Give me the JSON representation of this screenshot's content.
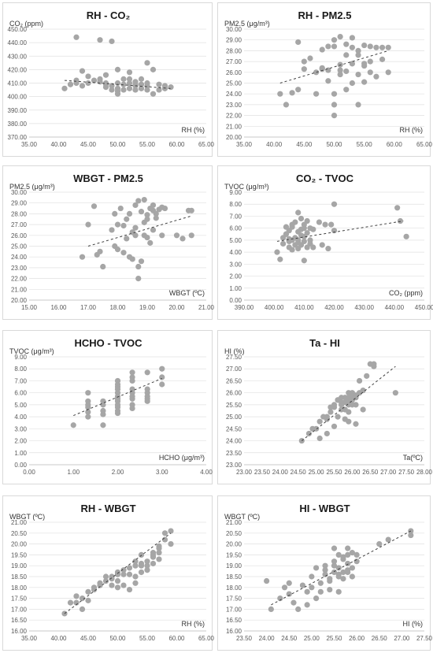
{
  "chart_data": [
    {
      "id": "rh-co2",
      "type": "scatter",
      "title": "RH - CO₂",
      "ylabel": "CO₂ (ppm)",
      "xlabel": "RH (%)",
      "xlim": [
        35,
        65
      ],
      "xstep": 5,
      "ylim": [
        370,
        450
      ],
      "ystep": 10,
      "trendline": [
        [
          41,
          412
        ],
        [
          59,
          406
        ]
      ],
      "x": [
        41,
        42,
        43,
        43,
        44,
        44,
        45,
        45,
        46,
        47,
        47,
        48,
        48,
        48,
        49,
        49,
        49,
        50,
        50,
        50,
        50,
        51,
        51,
        51,
        52,
        52,
        52,
        53,
        53,
        53,
        54,
        54,
        54,
        55,
        55,
        55,
        56,
        56,
        57,
        57,
        58,
        58,
        59,
        43,
        47,
        48,
        52,
        55,
        50,
        53
      ],
      "y": [
        406,
        409,
        444,
        410,
        419,
        408,
        415,
        410,
        412,
        442,
        413,
        416,
        410,
        409,
        408,
        441,
        405,
        410,
        420,
        406,
        404,
        405,
        413,
        409,
        410,
        406,
        418,
        408,
        405,
        411,
        406,
        409,
        413,
        425,
        405,
        408,
        402,
        420,
        409,
        405,
        408,
        406,
        407,
        412,
        411,
        407,
        413,
        410,
        402,
        409
      ]
    },
    {
      "id": "rh-pm25",
      "type": "scatter",
      "title": "RH - PM2.5",
      "ylabel": "PM2.5 (μg/m³)",
      "xlabel": "RH (%)",
      "xlim": [
        35,
        65
      ],
      "xstep": 5,
      "ylim": [
        20,
        30
      ],
      "ystep": 1,
      "trendline": [
        [
          41,
          25.0
        ],
        [
          59,
          28.0
        ]
      ],
      "x": [
        41,
        42,
        43,
        44,
        44,
        45,
        45,
        46,
        47,
        48,
        48,
        49,
        49,
        49,
        50,
        50,
        50,
        50,
        51,
        51,
        51,
        52,
        52,
        52,
        52,
        53,
        53,
        53,
        54,
        54,
        54,
        55,
        55,
        55,
        56,
        56,
        56,
        57,
        57,
        58,
        58,
        59,
        59,
        50,
        51,
        53,
        55,
        48,
        47,
        54
      ],
      "y": [
        24.0,
        23.0,
        24.1,
        28.8,
        24.4,
        27.0,
        26.3,
        27.3,
        24.0,
        28.1,
        26.3,
        28.4,
        25.2,
        26.2,
        29.0,
        23.0,
        22.0,
        24.0,
        29.3,
        26.7,
        25.8,
        28.6,
        27.6,
        24.4,
        26.1,
        29.2,
        28.3,
        26.8,
        25.8,
        27.6,
        23.0,
        28.5,
        26.6,
        25.1,
        28.4,
        27.0,
        26.0,
        28.3,
        25.6,
        28.3,
        27.2,
        26.0,
        28.3,
        28.4,
        26.2,
        25.0,
        26.8,
        26.4,
        26.0,
        28.0
      ]
    },
    {
      "id": "wbgt-pm25",
      "type": "scatter",
      "title": "WBGT - PM2.5",
      "ylabel": "PM2.5 (μg/m³)",
      "xlabel": "WBGT (ºC)",
      "xlim": [
        15,
        21
      ],
      "xstep": 1,
      "ylim": [
        20,
        30
      ],
      "ystep": 1,
      "trendline": [
        [
          17.0,
          25.0
        ],
        [
          20.5,
          27.8
        ]
      ],
      "x": [
        16.8,
        17.0,
        17.2,
        17.3,
        17.4,
        17.5,
        17.8,
        17.9,
        18.0,
        18.1,
        18.2,
        18.2,
        18.3,
        18.4,
        18.5,
        18.5,
        18.6,
        18.6,
        18.7,
        18.7,
        18.8,
        18.8,
        18.9,
        18.9,
        19.0,
        19.0,
        19.1,
        19.1,
        19.2,
        19.2,
        19.3,
        19.4,
        19.5,
        19.5,
        19.6,
        20.0,
        20.2,
        20.4,
        20.5,
        20.5,
        18.0,
        18.4,
        18.7,
        19.0,
        19.3,
        17.9,
        18.3,
        18.6,
        18.9,
        19.2
      ],
      "y": [
        24.0,
        27.0,
        28.7,
        24.2,
        24.5,
        23.1,
        26.5,
        25.0,
        27.0,
        28.5,
        24.4,
        26.9,
        25.7,
        28.0,
        26.3,
        23.8,
        28.8,
        26.0,
        29.2,
        22.0,
        23.6,
        28.2,
        26.0,
        29.3,
        25.8,
        27.9,
        28.5,
        25.3,
        28.3,
        26.5,
        27.6,
        28.4,
        26.0,
        28.6,
        28.5,
        26.0,
        25.7,
        28.3,
        26.0,
        28.3,
        24.7,
        24.0,
        23.1,
        27.5,
        28.0,
        28.0,
        27.5,
        26.7,
        27.2,
        28.8
      ]
    },
    {
      "id": "co2-tvoc",
      "type": "scatter",
      "title": "CO₂ - TVOC",
      "ylabel": "TVOC (μg/m³)",
      "xlabel": "CO₂ (ppm)",
      "xlim": [
        390,
        450
      ],
      "xstep": 10,
      "ylim": [
        0,
        9
      ],
      "ystep": 1,
      "trendline": [
        [
          401,
          4.9
        ],
        [
          443,
          6.6
        ]
      ],
      "x": [
        401,
        402,
        403,
        403,
        404,
        404,
        405,
        405,
        405,
        406,
        406,
        406,
        407,
        407,
        407,
        408,
        408,
        408,
        408,
        409,
        409,
        409,
        410,
        410,
        410,
        410,
        411,
        411,
        411,
        412,
        412,
        413,
        413,
        415,
        416,
        417,
        418,
        419,
        420,
        420,
        441,
        442,
        444,
        408,
        406,
        409,
        412,
        404,
        405,
        410
      ],
      "y": [
        4.0,
        3.4,
        5.2,
        4.7,
        5.5,
        6.1,
        4.4,
        5.8,
        4.9,
        6.3,
        5.0,
        4.2,
        5.2,
        6.5,
        4.6,
        7.3,
        5.7,
        5.0,
        4.3,
        5.9,
        6.8,
        4.6,
        6.3,
        5.3,
        4.9,
        3.3,
        6.6,
        5.6,
        4.4,
        6.0,
        5.0,
        5.9,
        4.4,
        6.5,
        4.6,
        6.3,
        4.3,
        6.3,
        5.8,
        8.0,
        7.7,
        6.6,
        5.3,
        4.8,
        6.1,
        5.4,
        4.7,
        5.5,
        5.1,
        6.0
      ]
    },
    {
      "id": "hcho-tvoc",
      "type": "scatter",
      "title": "HCHO - TVOC",
      "ylabel": "TVOC (μg/m³)",
      "xlabel": "HCHO (μg/m³)",
      "xlim": [
        0,
        4
      ],
      "xstep": 1,
      "ylim": [
        0,
        9
      ],
      "ystep": 1,
      "trendline": [
        [
          1.0,
          4.1
        ],
        [
          3.0,
          7.2
        ]
      ],
      "x": [
        1.0,
        1.33,
        1.33,
        1.33,
        1.33,
        1.33,
        1.33,
        1.67,
        1.67,
        1.67,
        1.67,
        1.67,
        2.0,
        2.0,
        2.0,
        2.0,
        2.0,
        2.0,
        2.0,
        2.0,
        2.0,
        2.0,
        2.0,
        2.0,
        2.33,
        2.33,
        2.33,
        2.33,
        2.33,
        2.33,
        2.33,
        2.33,
        2.33,
        2.67,
        2.67,
        2.67,
        2.67,
        2.67,
        2.67,
        3.0,
        3.0,
        3.0
      ],
      "y": [
        3.3,
        6.0,
        5.3,
        5.0,
        4.8,
        4.0,
        4.4,
        5.3,
        5.0,
        4.5,
        4.2,
        3.3,
        7.0,
        6.5,
        6.3,
        6.0,
        5.7,
        5.3,
        5.0,
        4.8,
        4.5,
        4.3,
        5.5,
        6.7,
        7.7,
        7.3,
        7.0,
        6.3,
        6.0,
        5.7,
        5.5,
        5.0,
        4.7,
        7.7,
        6.3,
        6.0,
        5.7,
        5.5,
        5.3,
        8.0,
        7.3,
        6.7
      ]
    },
    {
      "id": "ta-hi",
      "type": "scatter",
      "title": "Ta - HI",
      "ylabel": "HI (%)",
      "xlabel": "Ta(ºC)",
      "xlim": [
        23,
        28
      ],
      "xstep": 0.5,
      "ylim": [
        23,
        27.5
      ],
      "ystep": 0.5,
      "trendline": [
        [
          24.6,
          24.0
        ],
        [
          27.2,
          27.1
        ]
      ],
      "x": [
        24.6,
        24.8,
        24.9,
        25.0,
        25.1,
        25.1,
        25.2,
        25.3,
        25.3,
        25.4,
        25.5,
        25.5,
        25.6,
        25.6,
        25.7,
        25.7,
        25.7,
        25.8,
        25.8,
        25.8,
        25.9,
        25.9,
        25.9,
        25.9,
        26.0,
        26.0,
        26.0,
        26.0,
        26.1,
        26.1,
        26.1,
        26.2,
        26.2,
        26.3,
        26.3,
        26.4,
        26.5,
        26.6,
        26.6,
        27.2,
        25.4,
        25.6,
        25.8,
        26.0,
        25.5,
        25.7,
        25.9,
        26.1,
        25.3,
        25.9
      ],
      "y": [
        24.0,
        24.3,
        24.5,
        24.5,
        24.8,
        24.1,
        25.0,
        25.0,
        24.3,
        25.2,
        25.5,
        24.6,
        25.7,
        25.0,
        25.8,
        25.3,
        25.5,
        25.8,
        25.3,
        24.9,
        26.0,
        25.5,
        25.7,
        24.8,
        25.9,
        25.5,
        25.7,
        26.0,
        25.5,
        25.8,
        24.7,
        26.0,
        26.5,
        26.1,
        25.3,
        26.7,
        27.2,
        27.2,
        27.1,
        26.0,
        25.4,
        25.7,
        25.6,
        25.8,
        25.4,
        25.6,
        25.8,
        25.9,
        24.9,
        25.2
      ]
    },
    {
      "id": "rh-wbgt",
      "type": "scatter",
      "title": "RH - WBGT",
      "ylabel": "WBGT (ºC)",
      "xlabel": "RH (%)",
      "xlim": [
        35,
        65
      ],
      "xstep": 5,
      "ylim": [
        16,
        21
      ],
      "ystep": 0.5,
      "trendline": [
        [
          41,
          16.8
        ],
        [
          59,
          20.5
        ]
      ],
      "x": [
        41,
        42,
        43,
        43,
        44,
        44,
        45,
        45,
        46,
        47,
        48,
        48,
        49,
        49,
        50,
        50,
        50,
        51,
        51,
        52,
        52,
        52,
        53,
        53,
        53,
        54,
        54,
        54,
        55,
        55,
        55,
        56,
        56,
        56,
        57,
        57,
        57,
        58,
        58,
        59,
        59,
        46,
        47,
        49,
        51,
        53,
        54,
        56,
        57,
        50
      ],
      "y": [
        16.8,
        17.3,
        17.6,
        17.3,
        17.5,
        17.0,
        17.8,
        17.4,
        18.0,
        18.1,
        18.3,
        18.5,
        18.1,
        18.5,
        18.7,
        18.3,
        18.0,
        18.6,
        18.1,
        18.9,
        18.6,
        17.9,
        19.0,
        18.5,
        18.2,
        19.1,
        18.7,
        19.5,
        19.2,
        18.8,
        19.0,
        19.4,
        19.6,
        19.1,
        19.6,
        19.3,
        19.9,
        20.2,
        20.5,
        20.0,
        20.6,
        17.9,
        18.2,
        18.4,
        18.8,
        19.2,
        19.0,
        19.5,
        19.8,
        18.6
      ]
    },
    {
      "id": "hi-wbgt",
      "type": "scatter",
      "title": "HI - WBGT",
      "ylabel": "WBGT (ºC)",
      "xlabel": "HI (%)",
      "xlim": [
        23.5,
        27.5
      ],
      "xstep": 0.5,
      "ylim": [
        16,
        21
      ],
      "ystep": 0.5,
      "trendline": [
        [
          24.1,
          17.2
        ],
        [
          27.2,
          20.6
        ]
      ],
      "x": [
        24.0,
        24.1,
        24.3,
        24.4,
        24.5,
        24.5,
        24.6,
        24.7,
        24.8,
        24.9,
        25.0,
        25.0,
        25.1,
        25.2,
        25.2,
        25.3,
        25.3,
        25.4,
        25.4,
        25.5,
        25.5,
        25.5,
        25.6,
        25.6,
        25.6,
        25.7,
        25.7,
        25.7,
        25.8,
        25.8,
        25.8,
        25.9,
        25.9,
        25.9,
        26.0,
        26.0,
        26.5,
        26.7,
        27.2,
        27.2,
        25.4,
        25.6,
        25.8,
        25.5,
        25.7,
        24.9,
        25.1,
        25.3,
        25.6,
        25.8
      ],
      "y": [
        18.3,
        17.0,
        17.5,
        18.0,
        18.2,
        17.7,
        17.3,
        17.0,
        18.1,
        17.8,
        18.5,
        18.0,
        18.9,
        17.8,
        18.2,
        18.6,
        19.0,
        18.4,
        17.9,
        18.7,
        19.2,
        19.8,
        18.5,
        18.9,
        19.5,
        18.7,
        19.3,
        18.4,
        19.1,
        19.5,
        18.7,
        18.9,
        19.6,
        18.5,
        19.2,
        19.5,
        20.0,
        20.2,
        20.4,
        20.6,
        18.3,
        17.8,
        18.8,
        19.0,
        19.4,
        17.2,
        17.5,
        18.8,
        18.6,
        19.8
      ]
    }
  ]
}
